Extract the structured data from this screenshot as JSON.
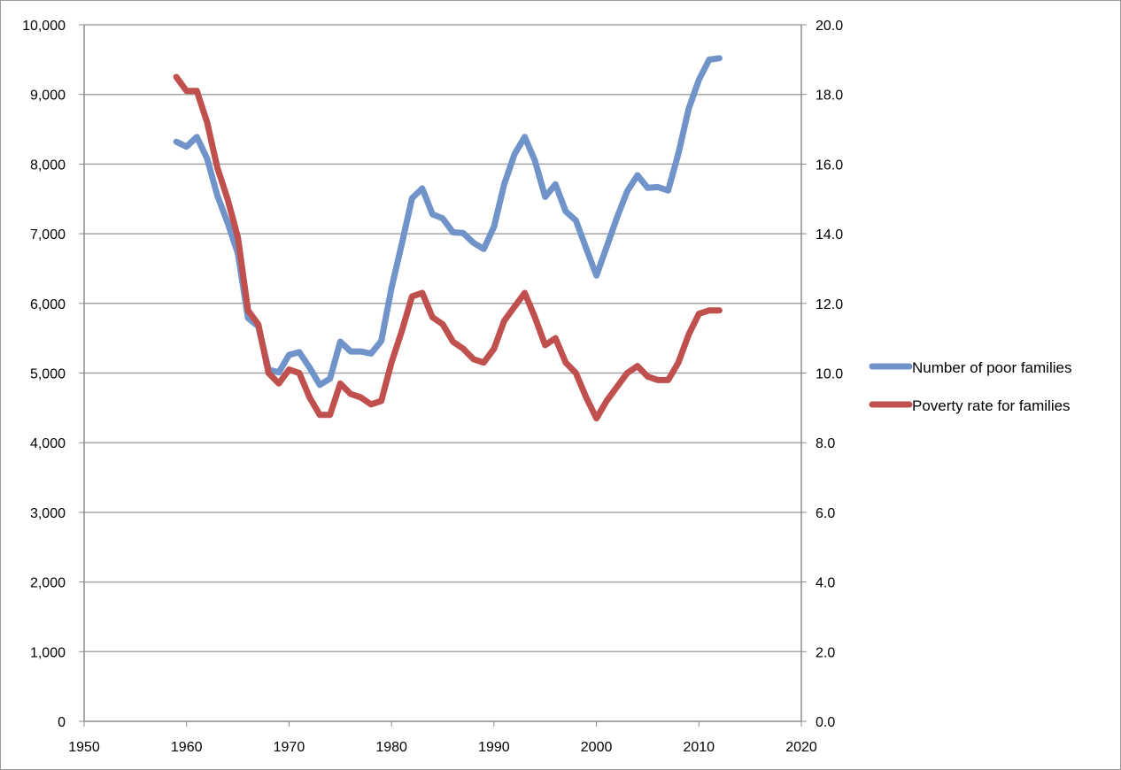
{
  "chart_data": {
    "type": "line",
    "title": "",
    "xlabel": "",
    "ylabel": "",
    "xlim": [
      1950,
      2020
    ],
    "ylim_left": [
      0,
      10000
    ],
    "ylim_right": [
      0,
      20
    ],
    "x_ticks": [
      1950,
      1960,
      1970,
      1980,
      1990,
      2000,
      2010,
      2020
    ],
    "y_left_ticks": [
      0,
      1000,
      2000,
      3000,
      4000,
      5000,
      6000,
      7000,
      8000,
      9000,
      10000
    ],
    "y_right_ticks": [
      0,
      2,
      4,
      6,
      8,
      10,
      12,
      14,
      16,
      18,
      20
    ],
    "grid": "horizontal",
    "legend_position": "right",
    "series": [
      {
        "name": "Number of poor families",
        "axis": "left",
        "color": "#7094c9",
        "x": [
          1959,
          1960,
          1961,
          1962,
          1963,
          1964,
          1965,
          1966,
          1967,
          1968,
          1969,
          1970,
          1971,
          1972,
          1973,
          1974,
          1975,
          1976,
          1977,
          1978,
          1979,
          1980,
          1981,
          1982,
          1983,
          1984,
          1985,
          1986,
          1987,
          1988,
          1989,
          1990,
          1991,
          1992,
          1993,
          1994,
          1995,
          1996,
          1997,
          1998,
          1999,
          2000,
          2001,
          2002,
          2003,
          2004,
          2005,
          2006,
          2007,
          2008,
          2009,
          2010,
          2011,
          2012
        ],
        "y": [
          8320,
          8250,
          8390,
          8080,
          7550,
          7160,
          6720,
          5790,
          5670,
          5050,
          5010,
          5260,
          5300,
          5080,
          4830,
          4920,
          5450,
          5310,
          5310,
          5280,
          5460,
          6220,
          6850,
          7510,
          7650,
          7280,
          7220,
          7020,
          7010,
          6870,
          6780,
          7100,
          7710,
          8140,
          8390,
          8050,
          7530,
          7710,
          7320,
          7190,
          6790,
          6400,
          6810,
          7230,
          7610,
          7840,
          7660,
          7670,
          7620,
          8150,
          8790,
          9210,
          9500,
          9520
        ]
      },
      {
        "name": "Poverty rate for families",
        "axis": "right",
        "color": "#c0504d",
        "x": [
          1959,
          1960,
          1961,
          1962,
          1963,
          1964,
          1965,
          1966,
          1967,
          1968,
          1969,
          1970,
          1971,
          1972,
          1973,
          1974,
          1975,
          1976,
          1977,
          1978,
          1979,
          1980,
          1981,
          1982,
          1983,
          1984,
          1985,
          1986,
          1987,
          1988,
          1989,
          1990,
          1991,
          1992,
          1993,
          1994,
          1995,
          1996,
          1997,
          1998,
          1999,
          2000,
          2001,
          2002,
          2003,
          2004,
          2005,
          2006,
          2007,
          2008,
          2009,
          2010,
          2011,
          2012
        ],
        "y": [
          18.5,
          18.1,
          18.1,
          17.2,
          15.9,
          15.0,
          13.9,
          11.8,
          11.4,
          10.0,
          9.7,
          10.1,
          10.0,
          9.3,
          8.8,
          8.8,
          9.7,
          9.4,
          9.3,
          9.1,
          9.2,
          10.3,
          11.2,
          12.2,
          12.3,
          11.6,
          11.4,
          10.9,
          10.7,
          10.4,
          10.3,
          10.7,
          11.5,
          11.9,
          12.3,
          11.6,
          10.8,
          11.0,
          10.3,
          10.0,
          9.3,
          8.7,
          9.2,
          9.6,
          10.0,
          10.2,
          9.9,
          9.8,
          9.8,
          10.3,
          11.1,
          11.7,
          11.8,
          11.8
        ]
      }
    ]
  }
}
